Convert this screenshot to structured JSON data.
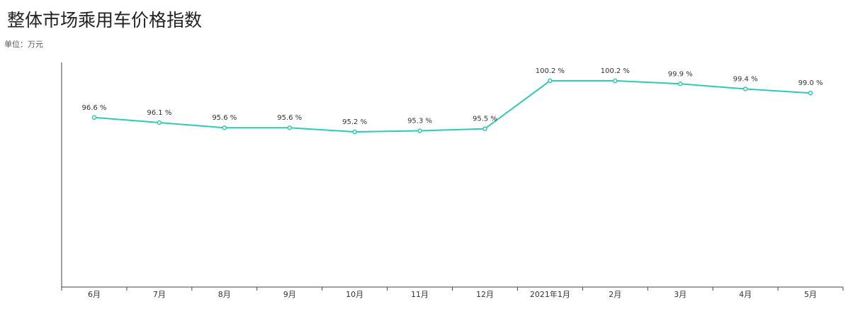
{
  "chart_data": {
    "type": "line",
    "title": "整体市场乘用车价格指数",
    "subtitle": "单位：万元",
    "categories": [
      "6月",
      "7月",
      "8月",
      "9月",
      "10月",
      "11月",
      "12月",
      "2021年1月",
      "2月",
      "3月",
      "4月",
      "5月"
    ],
    "values": [
      96.6,
      96.1,
      95.6,
      95.6,
      95.2,
      95.3,
      95.5,
      100.2,
      100.2,
      99.9,
      99.4,
      99.0
    ],
    "value_labels": [
      "96.6 %",
      "96.1 %",
      "95.6 %",
      "95.6 %",
      "95.2 %",
      "95.3 %",
      "95.5 %",
      "100.2 %",
      "100.2 %",
      "99.9 %",
      "99.4 %",
      "99.0 %"
    ],
    "color": "#2fc9b4",
    "ylim": [
      80,
      102
    ]
  }
}
